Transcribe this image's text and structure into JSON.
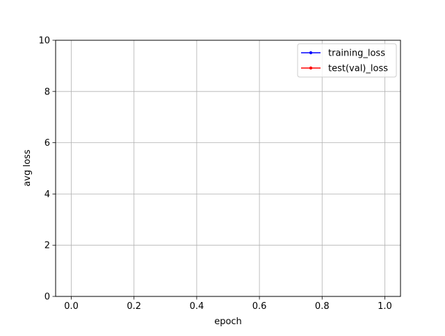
{
  "chart_data": {
    "type": "line",
    "title": "",
    "xlabel": "epoch",
    "ylabel": "avg loss",
    "xlim": [
      -0.05,
      1.05
    ],
    "ylim": [
      0,
      10
    ],
    "x_ticks": [
      0.0,
      0.2,
      0.4,
      0.6,
      0.8,
      1.0
    ],
    "x_tick_labels": [
      "0.0",
      "0.2",
      "0.4",
      "0.6",
      "0.8",
      "1.0"
    ],
    "y_ticks": [
      0,
      2,
      4,
      6,
      8,
      10
    ],
    "y_tick_labels": [
      "0",
      "2",
      "4",
      "6",
      "8",
      "10"
    ],
    "grid": true,
    "legend_position": "top-right",
    "series": [
      {
        "name": "training_loss",
        "color": "#0000ff",
        "marker": "point",
        "x": [],
        "y": []
      },
      {
        "name": "test(val)_loss",
        "color": "#ff0000",
        "marker": "point",
        "x": [],
        "y": []
      }
    ]
  }
}
